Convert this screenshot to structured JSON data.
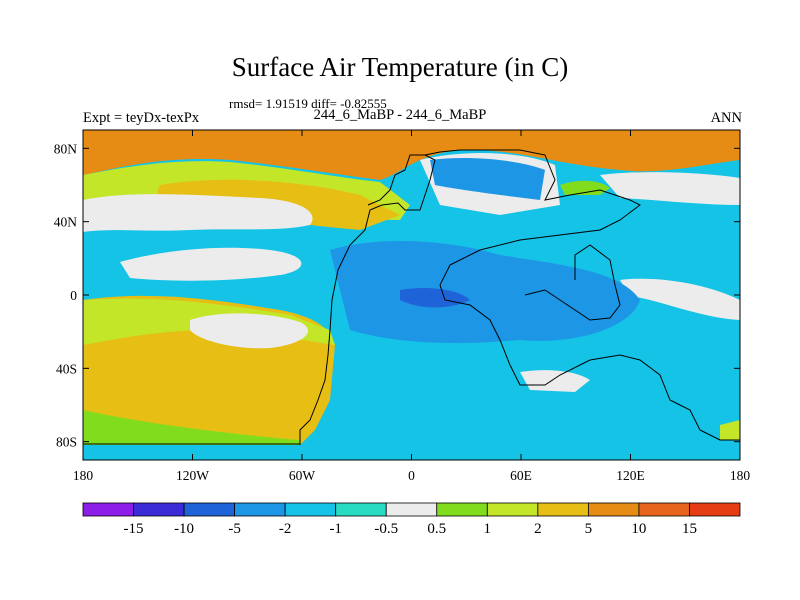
{
  "chart_data": {
    "type": "heatmap",
    "title": "Surface Air Temperature (in C)",
    "stats_line": "rmsd= 1.91519  diff= -0.82555",
    "rmsd": 1.91519,
    "diff": -0.82555,
    "left_label": "Expt = teyDx-texPx",
    "center_label": "244_6_MaBP - 244_6_MaBP",
    "right_label": "ANN",
    "xlim": [
      -180,
      180
    ],
    "ylim": [
      -90,
      90
    ],
    "x_ticks": [
      "180",
      "120W",
      "60W",
      "0",
      "60E",
      "120E",
      "180"
    ],
    "x_tick_values": [
      -180,
      -120,
      -60,
      0,
      60,
      120,
      180
    ],
    "y_ticks": [
      "80N",
      "40N",
      "0",
      "40S",
      "80S"
    ],
    "y_tick_values": [
      80,
      40,
      0,
      -40,
      -80
    ],
    "colorbar": {
      "levels": [
        "-15",
        "-10",
        "-5",
        "-2",
        "-1",
        "-0.5",
        "0.5",
        "1",
        "2",
        "5",
        "10",
        "15"
      ],
      "colors": [
        "#8c1ee8",
        "#3c2cd8",
        "#1e64d8",
        "#1e96e6",
        "#14c3e6",
        "#28dcc3",
        "#ececec",
        "#82dc1e",
        "#c3e628",
        "#e6be14",
        "#e68c14",
        "#e6641e",
        "#e63c14"
      ]
    },
    "regions": [
      {
        "name": "arctic-warm",
        "value": "5 to 10"
      },
      {
        "name": "north-pacific-warm",
        "value": "2 to 5"
      },
      {
        "name": "south-pacific-warm",
        "value": "2 to 5"
      },
      {
        "name": "tropical-cooling",
        "value": "-2 to -5"
      },
      {
        "name": "southern-ocean-cooling",
        "value": "-1 to -2"
      }
    ]
  }
}
